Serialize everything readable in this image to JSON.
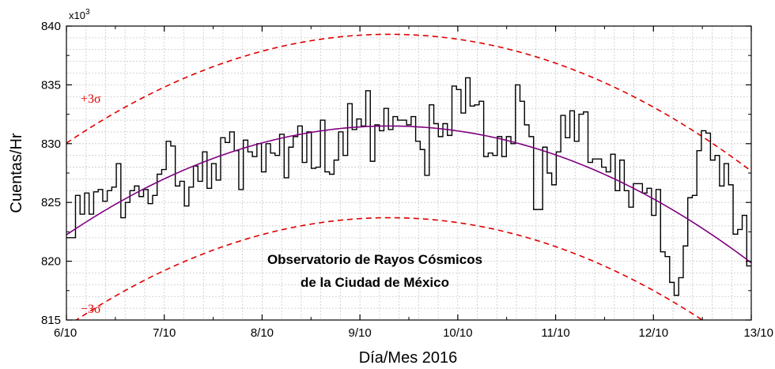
{
  "chart_data": {
    "type": "line",
    "xlabel": "Día/Mes 2016",
    "ylabel": "Cuentas/Hr",
    "y_multiplier": "x10",
    "y_multiplier_exp": "3",
    "xlim": [
      0,
      7
    ],
    "ylim": [
      815,
      840
    ],
    "x_ticks": [
      0,
      1,
      2,
      3,
      4,
      5,
      6,
      7
    ],
    "x_tick_labels": [
      "6/10",
      "7/10",
      "8/10",
      "9/10",
      "10/10",
      "11/10",
      "12/10",
      "13/10"
    ],
    "y_ticks": [
      815,
      820,
      825,
      830,
      835,
      840
    ],
    "y_tick_labels": [
      "815",
      "820",
      "825",
      "830",
      "835",
      "840"
    ],
    "grid": true,
    "annotation_lines": [
      "Observatorio de Rayos Cósmicos",
      "de la Ciudad de México"
    ],
    "colors": {
      "data": "#000000",
      "fit": "#800080",
      "sigma": "#e00000",
      "grid": "#c8c8c8"
    },
    "fit": {
      "vertex_x": 3.3,
      "vertex_y": 831.5,
      "curvature": 0.85
    },
    "sigma_offset": 7.8,
    "sigma_labels": {
      "upper": "+3σ",
      "lower": "−3σ"
    },
    "step_width_days": 0.0417,
    "series": [
      {
        "style": "step",
        "values": [
          822.0,
          822.0,
          825.6,
          824.0,
          825.8,
          824.0,
          825.9,
          826.1,
          825.1,
          826.0,
          826.3,
          828.3,
          823.7,
          825.0,
          826.0,
          826.4,
          825.5,
          826.1,
          824.9,
          825.6,
          827.4,
          827.8,
          830.2,
          829.8,
          826.4,
          826.8,
          824.7,
          826.3,
          828.1,
          826.8,
          829.3,
          826.2,
          828.3,
          826.9,
          830.5,
          830.1,
          831.0,
          829.4,
          826.1,
          830.3,
          829.3,
          828.9,
          830.0,
          827.6,
          830.0,
          829.2,
          829.0,
          830.8,
          827.1,
          829.7,
          830.6,
          831.5,
          828.4,
          831.0,
          827.9,
          828.0,
          832.0,
          827.6,
          827.4,
          828.6,
          831.0,
          829.0,
          833.4,
          831.2,
          832.1,
          831.5,
          834.5,
          828.5,
          831.6,
          831.1,
          833.0,
          831.2,
          832.3,
          832.0,
          832.0,
          831.6,
          832.3,
          830.2,
          829.5,
          827.3,
          833.3,
          831.7,
          830.6,
          831.7,
          830.7,
          834.9,
          834.6,
          832.6,
          835.6,
          833.2,
          833.3,
          833.6,
          828.9,
          829.2,
          829.0,
          830.6,
          828.9,
          830.6,
          830.0,
          835.0,
          833.6,
          831.6,
          830.6,
          824.4,
          824.4,
          829.7,
          827.5,
          826.5,
          829.3,
          832.4,
          830.5,
          832.8,
          830.2,
          832.5,
          832.7,
          828.4,
          828.7,
          828.7,
          828.0,
          827.6,
          829.1,
          826.0,
          828.6,
          826.0,
          824.6,
          826.6,
          826.6,
          825.8,
          826.2,
          823.9,
          826.1,
          820.8,
          820.4,
          818.2,
          817.1,
          818.6,
          821.3,
          825.4,
          825.6,
          829.4,
          831.1,
          830.9,
          828.6,
          829.0,
          826.4,
          828.3,
          826.5,
          822.3,
          822.7,
          823.9,
          819.6
        ]
      }
    ]
  }
}
